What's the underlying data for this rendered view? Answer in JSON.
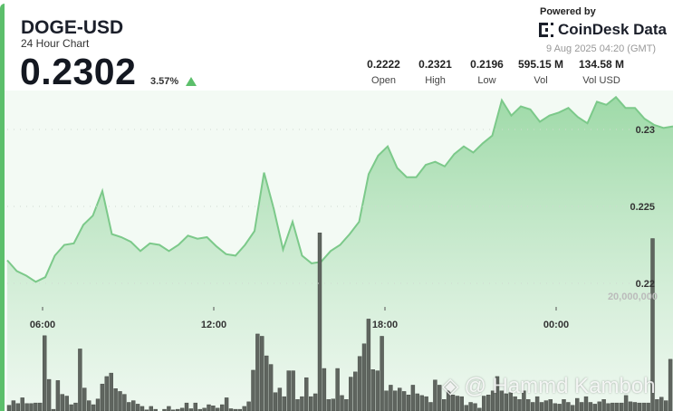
{
  "header": {
    "title": "DOGE-USD",
    "subtitle": "24 Hour Chart",
    "price": "0.2302",
    "change": "3.57%",
    "change_direction": "up",
    "powered_by": "Powered by",
    "brand": "CoinDesk Data",
    "timestamp": "9 Aug 2025 04:20 (GMT)"
  },
  "stats": [
    {
      "value": "0.2222",
      "label": "Open"
    },
    {
      "value": "0.2321",
      "label": "High"
    },
    {
      "value": "0.2196",
      "label": "Low"
    },
    {
      "value": "595.15 M",
      "label": "Vol"
    },
    {
      "value": "134.58 M",
      "label": "Vol USD"
    }
  ],
  "colors": {
    "accent": "#5cbf6b",
    "line": "#7cc98a",
    "volume": "#5f655f",
    "up": "#5cbf6b"
  },
  "watermark": "@ Hammd Kamboh",
  "chart_data": {
    "type": "line",
    "x_range": [
      "04:45",
      "04:20"
    ],
    "x_ticks": [
      "06:00",
      "12:00",
      "18:00",
      "00:00"
    ],
    "x_tick_hours": [
      6,
      12,
      18,
      24
    ],
    "y_ticks": [
      "0.23",
      "0.225",
      "0.22"
    ],
    "y_tick_values": [
      0.23,
      0.225,
      0.22
    ],
    "ylim": [
      0.2175,
      0.2345
    ],
    "price": [
      0.2215,
      0.2208,
      0.2205,
      0.2201,
      0.2204,
      0.2218,
      0.2225,
      0.2226,
      0.2238,
      0.2244,
      0.226,
      0.2232,
      0.223,
      0.2227,
      0.2221,
      0.2226,
      0.2225,
      0.2221,
      0.2225,
      0.2231,
      0.2229,
      0.223,
      0.2224,
      0.2219,
      0.2218,
      0.2225,
      0.2234,
      0.2272,
      0.2249,
      0.2222,
      0.224,
      0.2218,
      0.2213,
      0.2214,
      0.2221,
      0.2225,
      0.2232,
      0.224,
      0.2271,
      0.2283,
      0.2289,
      0.2275,
      0.2269,
      0.2269,
      0.2277,
      0.2279,
      0.2276,
      0.2284,
      0.2289,
      0.2285,
      0.2291,
      0.2296,
      0.2319,
      0.2309,
      0.2315,
      0.2313,
      0.2305,
      0.2309,
      0.2311,
      0.2314,
      0.2308,
      0.2304,
      0.2318,
      0.2316,
      0.2321,
      0.2314,
      0.2314,
      0.2307,
      0.2303,
      0.2301,
      0.2302
    ],
    "volume_tick": "20,000,000",
    "volume_tick_value": 20000000,
    "volume_millions": [
      1.0,
      1.8,
      1.3,
      2.3,
      1.3,
      1.3,
      1.4,
      1.4,
      13.1,
      5.5,
      0.3,
      5.3,
      2.9,
      2.6,
      1.1,
      1.4,
      10.8,
      4.0,
      1.8,
      1.1,
      2.1,
      4.7,
      6.0,
      6.6,
      3.9,
      3.4,
      2.9,
      1.5,
      1.8,
      1.2,
      0.8,
      0.2,
      0.8,
      0.3,
      0.0,
      0.3,
      0.8,
      0.2,
      0.3,
      0.5,
      1.4,
      0.4,
      1.4,
      0.3,
      0.5,
      1.1,
      0.9,
      0.5,
      1.1,
      2.3,
      0.4,
      0.3,
      0.3,
      0.8,
      1.6,
      7.1,
      13.4,
      13.0,
      9.6,
      8.1,
      3.2,
      4.0,
      2.5,
      7.0,
      7.0,
      2.0,
      2.5,
      5.8,
      2.5,
      3.0,
      31.0,
      7.4,
      2.0,
      2.1,
      7.4,
      2.7,
      2.0,
      5.9,
      6.8,
      9.5,
      11.7,
      16.0,
      7.2,
      7.0,
      13.0,
      3.5,
      4.5,
      3.5,
      4.0,
      3.4,
      2.8,
      4.5,
      3.0,
      2.7,
      2.5,
      1.5,
      5.4,
      4.5,
      2.0,
      3.5,
      2.8,
      2.6,
      2.5,
      1.0,
      1.5,
      1.3,
      0.5,
      2.6,
      2.8,
      3.5,
      6.0,
      3.5,
      3.0,
      3.2,
      2.5,
      2.0,
      3.5,
      2.0,
      1.5,
      2.5,
      1.5,
      1.8,
      2.0,
      1.3,
      1.2,
      2.0,
      1.5,
      1.0,
      2.2,
      1.5,
      2.5,
      1.5,
      1.2,
      1.6,
      2.0,
      1.3,
      1.4,
      1.4,
      1.4,
      2.7,
      1.6,
      1.5,
      1.4,
      1.4,
      1.4,
      30.0,
      2.0,
      2.4,
      1.8,
      9.0
    ]
  }
}
